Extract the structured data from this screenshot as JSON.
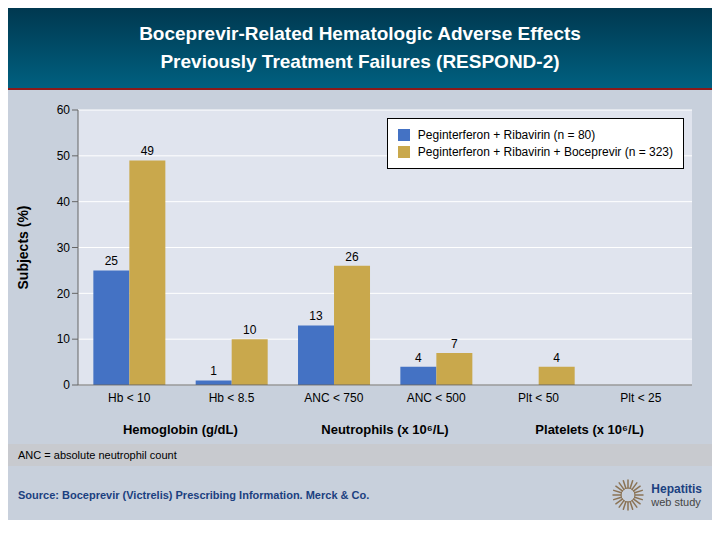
{
  "chart_data": {
    "type": "bar",
    "title": "Boceprevir-Related Hematologic Adverse Effects",
    "subtitle": "Previously Treatment Failures (RESPOND-2)",
    "categories": [
      "Hb < 10",
      "Hb < 8.5",
      "ANC < 750",
      "ANC < 500",
      "Plt < 50",
      "Plt < 25"
    ],
    "series": [
      {
        "name": "Peginterferon + Ribavirin (n = 80)",
        "color": "#4472C4",
        "values": [
          25,
          1,
          13,
          4,
          0,
          0
        ]
      },
      {
        "name": "Peginterferon + Ribavirin + Boceprevir (n = 323)",
        "color": "#C9A84C",
        "values": [
          49,
          10,
          26,
          7,
          4,
          0
        ]
      }
    ],
    "y_label": "Subjects (%)",
    "ylim": [
      0,
      60
    ],
    "yticks": [
      0,
      10,
      20,
      30,
      40,
      50,
      60
    ],
    "grid": true,
    "legend": "upper right",
    "data_labels": true,
    "annotations": [
      "Hemoglobin (g/dL)",
      "Neutrophils (x 10⁶/L)",
      "Platelets (x 10⁶/L)",
      "ANC = absolute neutrophil count",
      "Source: Boceprevir (Victrelis) Prescribing Information. Merck & Co.",
      "Hepatitis",
      "web study"
    ]
  }
}
